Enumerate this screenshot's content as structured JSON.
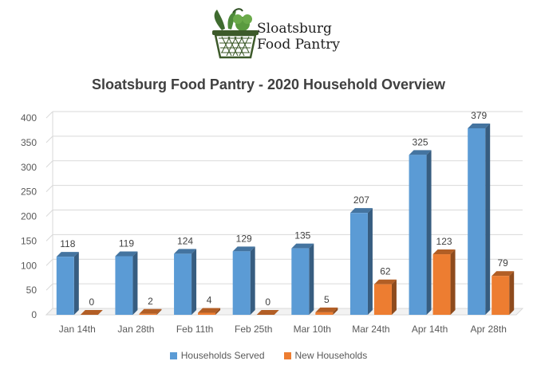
{
  "logo": {
    "line1": "Sloatsburg",
    "line2": "Food Pantry",
    "icon": "basket-of-vegetables-icon"
  },
  "chart_data": {
    "type": "bar",
    "title": "Sloatsburg Food Pantry - 2020 Household Overview",
    "xlabel": "",
    "ylabel": "",
    "categories": [
      "Jan 14th",
      "Jan 28th",
      "Feb 11th",
      "Feb 25th",
      "Mar 10th",
      "Mar 24th",
      "Apr 14th",
      "Apr 28th"
    ],
    "series": [
      {
        "name": "Households Served",
        "values": [
          118,
          119,
          124,
          129,
          135,
          207,
          325,
          379
        ],
        "color": "#5b9bd5"
      },
      {
        "name": "New Households",
        "values": [
          0,
          2,
          4,
          0,
          5,
          62,
          123,
          79
        ],
        "color": "#ed7d31"
      }
    ],
    "ylim": [
      0,
      400
    ],
    "yticks": [
      0,
      50,
      100,
      150,
      200,
      250,
      300,
      350,
      400
    ],
    "grid": true,
    "legend_position": "bottom",
    "style": "3d-clustered-column"
  }
}
